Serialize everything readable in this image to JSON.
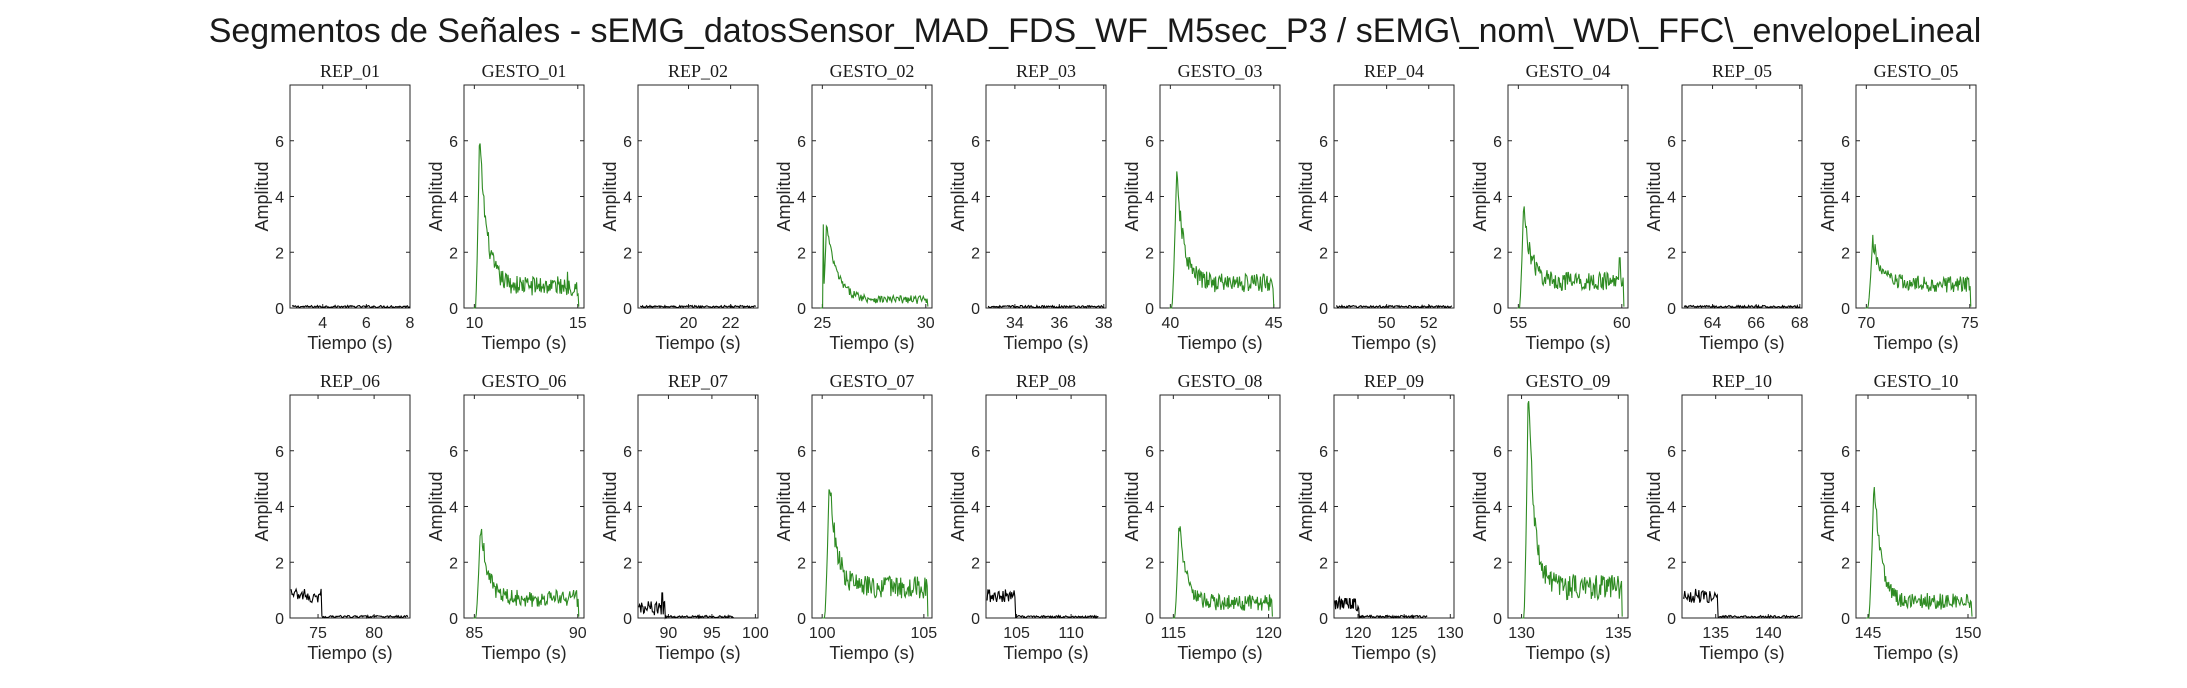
{
  "title": "Segmentos de Señales - sEMG_datosSensor_MAD_FDS_WF_M5sec_P3 / sEMG\\_nom\\_WD\\_FFC\\_envelopeLineal",
  "colors": {
    "rep": "#000000",
    "gesto": "#2e8b22",
    "axis": "#262626"
  },
  "chart_data": {
    "type": "line",
    "ylabel": "Amplitud",
    "xlabel": "Tiempo (s)",
    "ylim": [
      0,
      8
    ],
    "yticks": [
      0,
      2,
      4,
      6
    ],
    "grid": false,
    "panels": [
      {
        "title": "REP_01",
        "kind": "rep",
        "xlim": [
          2.5,
          8
        ],
        "xticks": [
          4,
          6,
          8
        ],
        "profile": {
          "start": 2.6,
          "end": 8.0,
          "base": 0.05,
          "noise": 0.04
        }
      },
      {
        "title": "GESTO_01",
        "kind": "gesto",
        "xlim": [
          9.5,
          15.3
        ],
        "xticks": [
          10,
          15
        ],
        "profile": {
          "start": 9.95,
          "end": 15.05,
          "peak_t": 10.25,
          "peak": 6.2,
          "decay": 0.35,
          "plateau": 0.8,
          "noise": 0.35,
          "extra": [
            {
              "t": 14.5,
              "v": 1.3
            }
          ]
        }
      },
      {
        "title": "REP_02",
        "kind": "rep",
        "xlim": [
          17.6,
          23.3
        ],
        "xticks": [
          20,
          22
        ],
        "profile": {
          "start": 17.7,
          "end": 23.2,
          "base": 0.05,
          "noise": 0.04
        }
      },
      {
        "title": "GESTO_02",
        "kind": "gesto",
        "xlim": [
          24.5,
          30.3
        ],
        "xticks": [
          25,
          30
        ],
        "profile": {
          "start": 24.9,
          "end": 30.1,
          "peak_t": 25.2,
          "peak": 3.0,
          "decay": 0.5,
          "plateau": 0.3,
          "noise": 0.15,
          "extra": [
            {
              "t": 25.05,
              "v": 3.0
            }
          ]
        }
      },
      {
        "title": "REP_03",
        "kind": "rep",
        "xlim": [
          32.7,
          38.1
        ],
        "xticks": [
          34,
          36,
          38
        ],
        "profile": {
          "start": 32.8,
          "end": 38.0,
          "base": 0.05,
          "noise": 0.04
        }
      },
      {
        "title": "GESTO_03",
        "kind": "gesto",
        "xlim": [
          39.5,
          45.3
        ],
        "xticks": [
          40,
          45
        ],
        "profile": {
          "start": 39.95,
          "end": 45.0,
          "peak_t": 40.3,
          "peak": 4.8,
          "decay": 0.35,
          "plateau": 0.9,
          "noise": 0.35,
          "extra": []
        }
      },
      {
        "title": "REP_04",
        "kind": "rep",
        "xlim": [
          47.5,
          53.2
        ],
        "xticks": [
          50,
          52
        ],
        "profile": {
          "start": 47.6,
          "end": 53.1,
          "base": 0.05,
          "noise": 0.04
        }
      },
      {
        "title": "GESTO_04",
        "kind": "gesto",
        "xlim": [
          54.5,
          60.3
        ],
        "xticks": [
          55,
          60
        ],
        "profile": {
          "start": 54.95,
          "end": 60.1,
          "peak_t": 55.25,
          "peak": 3.6,
          "decay": 0.35,
          "plateau": 0.95,
          "noise": 0.35,
          "extra": [
            {
              "t": 59.9,
              "v": 1.8
            }
          ]
        }
      },
      {
        "title": "REP_05",
        "kind": "rep",
        "xlim": [
          62.6,
          68.1
        ],
        "xticks": [
          64,
          66,
          68
        ],
        "profile": {
          "start": 62.7,
          "end": 68.0,
          "base": 0.05,
          "noise": 0.04
        }
      },
      {
        "title": "GESTO_05",
        "kind": "gesto",
        "xlim": [
          69.5,
          75.3
        ],
        "xticks": [
          70,
          75
        ],
        "profile": {
          "start": 69.95,
          "end": 75.05,
          "peak_t": 70.3,
          "peak": 2.4,
          "decay": 0.4,
          "plateau": 0.85,
          "noise": 0.3,
          "extra": []
        }
      },
      {
        "title": "REP_06",
        "kind": "rep",
        "xlim": [
          72.5,
          83.2
        ],
        "xticks": [
          75,
          80
        ],
        "profile": {
          "start": 72.6,
          "end": 83.0,
          "base": 0.05,
          "noise": 0.04,
          "burst_end": 75.3,
          "burst": 0.8
        }
      },
      {
        "title": "GESTO_06",
        "kind": "gesto",
        "xlim": [
          84.5,
          90.3
        ],
        "xticks": [
          85,
          90
        ],
        "profile": {
          "start": 84.95,
          "end": 90.05,
          "peak_t": 85.3,
          "peak": 3.4,
          "decay": 0.35,
          "plateau": 0.7,
          "noise": 0.3,
          "extra": [
            {
              "t": 89.8,
              "v": 1.0
            }
          ]
        }
      },
      {
        "title": "REP_07",
        "kind": "rep",
        "xlim": [
          86.5,
          100.3
        ],
        "xticks": [
          90,
          95,
          100
        ],
        "profile": {
          "start": 86.6,
          "end": 97.5,
          "base": 0.05,
          "noise": 0.04,
          "burst_end": 89.6,
          "burst": 0.35,
          "extra": [
            {
              "t": 89.3,
              "v": 0.9
            }
          ]
        }
      },
      {
        "title": "GESTO_07",
        "kind": "gesto",
        "xlim": [
          99.5,
          105.4
        ],
        "xticks": [
          100,
          105
        ],
        "profile": {
          "start": 100.0,
          "end": 105.2,
          "peak_t": 100.35,
          "peak": 5.1,
          "decay": 0.35,
          "plateau": 1.1,
          "noise": 0.4,
          "extra": []
        }
      },
      {
        "title": "REP_08",
        "kind": "rep",
        "xlim": [
          102.2,
          113.2
        ],
        "xticks": [
          105,
          110
        ],
        "profile": {
          "start": 102.3,
          "end": 112.5,
          "base": 0.05,
          "noise": 0.04,
          "burst_end": 104.9,
          "burst": 0.8
        }
      },
      {
        "title": "GESTO_08",
        "kind": "gesto",
        "xlim": [
          114.3,
          120.6
        ],
        "xticks": [
          115,
          120
        ],
        "profile": {
          "start": 114.95,
          "end": 120.2,
          "peak_t": 115.3,
          "peak": 3.5,
          "decay": 0.35,
          "plateau": 0.55,
          "noise": 0.3,
          "extra": []
        }
      },
      {
        "title": "REP_09",
        "kind": "rep",
        "xlim": [
          117.4,
          130.4
        ],
        "xticks": [
          120,
          125,
          130
        ],
        "profile": {
          "start": 117.5,
          "end": 127.5,
          "base": 0.05,
          "noise": 0.04,
          "burst_end": 120.1,
          "burst": 0.5
        }
      },
      {
        "title": "GESTO_09",
        "kind": "gesto",
        "xlim": [
          129.3,
          135.5
        ],
        "xticks": [
          130,
          135
        ],
        "profile": {
          "start": 130.0,
          "end": 135.2,
          "peak_t": 130.35,
          "peak": 8.5,
          "decay": 0.3,
          "plateau": 1.1,
          "noise": 0.45,
          "extra": []
        }
      },
      {
        "title": "REP_10",
        "kind": "rep",
        "xlim": [
          131.8,
          143.2
        ],
        "xticks": [
          135,
          140
        ],
        "profile": {
          "start": 131.9,
          "end": 143.0,
          "base": 0.05,
          "noise": 0.04,
          "burst_end": 135.2,
          "burst": 0.8
        }
      },
      {
        "title": "GESTO_10",
        "kind": "gesto",
        "xlim": [
          144.4,
          150.4
        ],
        "xticks": [
          145,
          150
        ],
        "profile": {
          "start": 144.9,
          "end": 150.2,
          "peak_t": 145.3,
          "peak": 5.0,
          "decay": 0.35,
          "plateau": 0.6,
          "noise": 0.3,
          "extra": []
        }
      }
    ]
  }
}
